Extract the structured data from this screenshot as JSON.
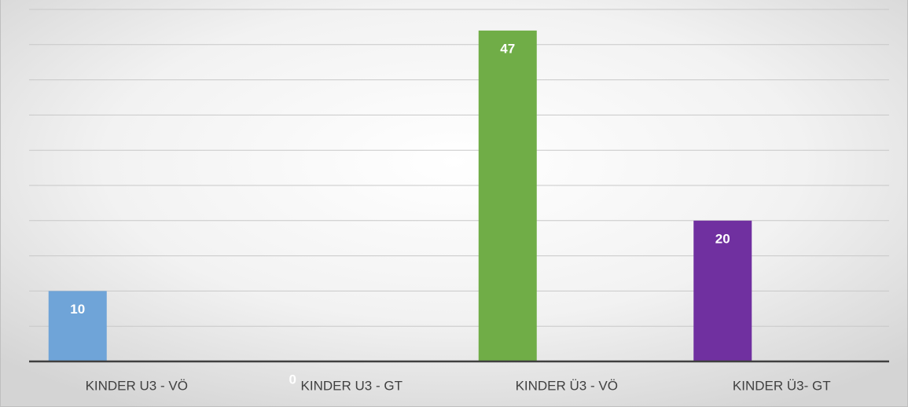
{
  "chart_data": {
    "type": "bar",
    "categories": [
      "KINDER U3 - VÖ",
      "KINDER U3 - GT",
      "KINDER Ü3 - VÖ",
      "KINDER Ü3- GT"
    ],
    "values": [
      10,
      0,
      47,
      20
    ],
    "colors": [
      "#6fa4d8",
      "#5b9bd5",
      "#70ad47",
      "#7030a0"
    ],
    "ylim": [
      0,
      50
    ],
    "yticks": [
      0,
      5,
      10,
      15,
      20,
      25,
      30,
      35,
      40,
      45,
      50
    ],
    "grid": true
  }
}
